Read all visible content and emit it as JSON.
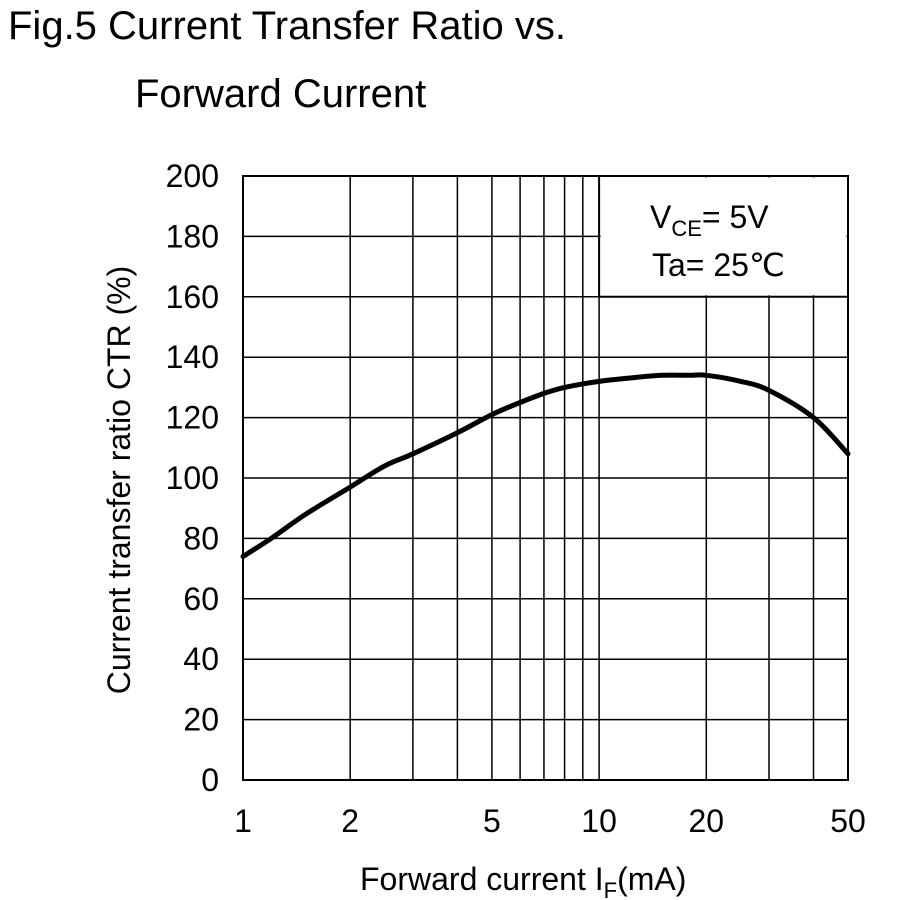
{
  "chart_data": {
    "type": "line",
    "title": "Fig.5 Current Transfer Ratio vs.",
    "title_line2": "Forward Current",
    "xlabel": {
      "main": "Forward current I",
      "sub": "F",
      "unit": "(mA)"
    },
    "ylabel": "Current transfer ratio CTR (%)",
    "x_scale": "log",
    "xlim": [
      1,
      50
    ],
    "ylim": [
      0,
      200
    ],
    "x_ticks": [
      1,
      2,
      5,
      10,
      20,
      50
    ],
    "y_ticks": [
      0,
      20,
      40,
      60,
      80,
      100,
      120,
      140,
      160,
      180,
      200
    ],
    "grid": true,
    "annotation": {
      "line1_main": "V",
      "line1_sub": "CE",
      "line1_rest": "= 5V",
      "line2": "Ta= 25℃"
    },
    "series": [
      {
        "x": [
          1,
          1.2,
          1.5,
          2,
          2.5,
          3,
          4,
          5,
          6,
          7,
          8,
          10,
          12,
          15,
          18,
          20,
          25,
          30,
          40,
          50
        ],
        "y": [
          74,
          80,
          88,
          97,
          104,
          108,
          115,
          121,
          125,
          128,
          130,
          132,
          133,
          134,
          134,
          134,
          132,
          129,
          120,
          108
        ]
      }
    ]
  }
}
